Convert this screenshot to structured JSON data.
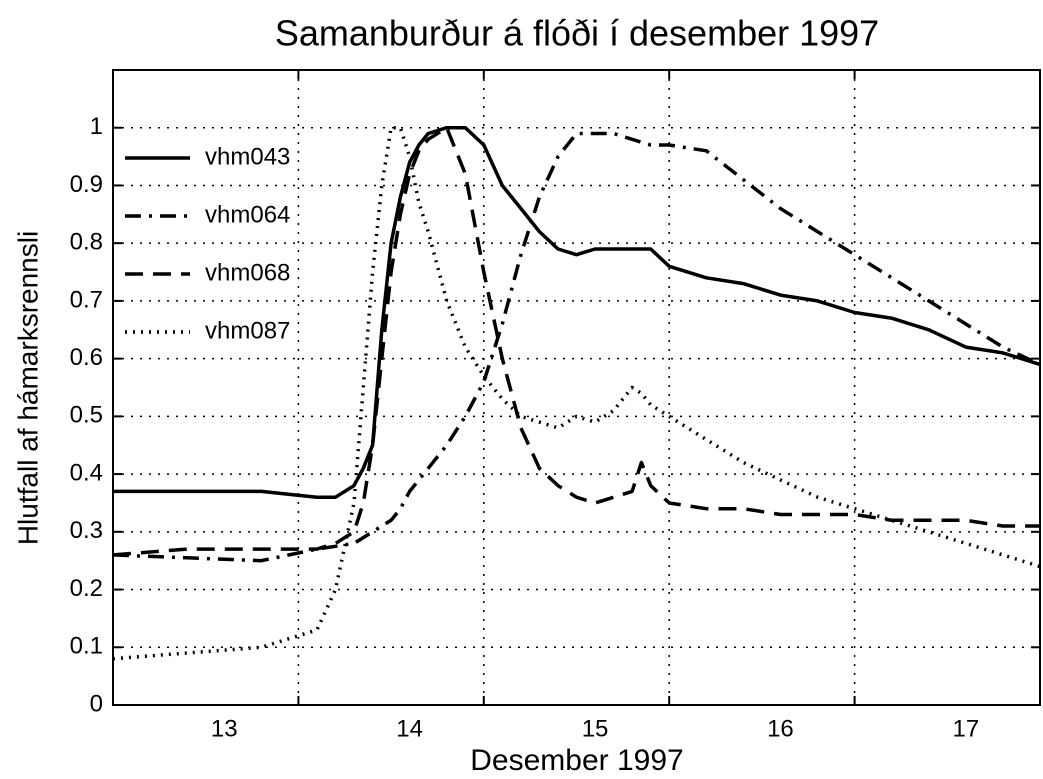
{
  "chart_data": {
    "type": "line",
    "title": "Samanburður á flóði í desember 1997",
    "x_label": "Desember 1997",
    "y_label": "Hlutfall af hámarksrennsli",
    "xlim": [
      12.4,
      17.4
    ],
    "xticks": [
      13,
      14,
      15,
      16,
      17
    ],
    "x_grid": [
      13.4,
      14.4,
      15.4,
      16.4
    ],
    "ylim": [
      0,
      1.1
    ],
    "yticks": [
      0,
      0.1,
      0.2,
      0.3,
      0.4,
      0.5,
      0.6,
      0.7,
      0.8,
      0.9,
      1
    ],
    "grid": true,
    "legend": "upper-left",
    "x": [
      12.4,
      12.8,
      13.2,
      13.5,
      13.6,
      13.7,
      13.75,
      13.8,
      13.85,
      13.9,
      13.95,
      14.0,
      14.05,
      14.1,
      14.2,
      14.3,
      14.4,
      14.5,
      14.6,
      14.7,
      14.8,
      14.9,
      15.0,
      15.1,
      15.2,
      15.25,
      15.3,
      15.4,
      15.6,
      15.8,
      16.0,
      16.2,
      16.4,
      16.6,
      16.8,
      17.0,
      17.2,
      17.4
    ],
    "series": [
      {
        "name": "vhm043",
        "color": "#000000",
        "dash": "solid",
        "values": [
          0.37,
          0.37,
          0.37,
          0.36,
          0.36,
          0.38,
          0.41,
          0.45,
          0.65,
          0.8,
          0.88,
          0.94,
          0.97,
          0.99,
          1.0,
          1.0,
          0.97,
          0.9,
          0.86,
          0.82,
          0.79,
          0.78,
          0.79,
          0.79,
          0.79,
          0.79,
          0.79,
          0.76,
          0.74,
          0.73,
          0.71,
          0.7,
          0.68,
          0.67,
          0.65,
          0.62,
          0.61,
          0.59
        ]
      },
      {
        "name": "vhm064",
        "color": "#000000",
        "dash": "dashdot",
        "values": [
          0.26,
          0.255,
          0.25,
          0.27,
          0.275,
          0.28,
          0.29,
          0.3,
          0.31,
          0.32,
          0.34,
          0.37,
          0.39,
          0.41,
          0.45,
          0.5,
          0.56,
          0.66,
          0.78,
          0.88,
          0.95,
          0.99,
          0.99,
          0.99,
          0.98,
          0.975,
          0.97,
          0.97,
          0.96,
          0.91,
          0.86,
          0.82,
          0.78,
          0.74,
          0.7,
          0.66,
          0.62,
          0.59
        ]
      },
      {
        "name": "vhm068",
        "color": "#000000",
        "dash": "dashed",
        "values": [
          0.26,
          0.27,
          0.27,
          0.27,
          0.28,
          0.3,
          0.35,
          0.45,
          0.6,
          0.75,
          0.85,
          0.92,
          0.96,
          0.98,
          1.0,
          0.92,
          0.75,
          0.6,
          0.48,
          0.41,
          0.38,
          0.36,
          0.35,
          0.36,
          0.37,
          0.42,
          0.38,
          0.35,
          0.34,
          0.34,
          0.33,
          0.33,
          0.33,
          0.32,
          0.32,
          0.32,
          0.31,
          0.31
        ]
      },
      {
        "name": "vhm087",
        "color": "#000000",
        "dash": "dotted",
        "values": [
          0.08,
          0.09,
          0.1,
          0.13,
          0.2,
          0.35,
          0.55,
          0.75,
          0.9,
          1.0,
          1.0,
          0.95,
          0.87,
          0.82,
          0.7,
          0.62,
          0.57,
          0.53,
          0.5,
          0.49,
          0.48,
          0.5,
          0.49,
          0.51,
          0.55,
          0.54,
          0.52,
          0.5,
          0.46,
          0.42,
          0.39,
          0.36,
          0.34,
          0.32,
          0.3,
          0.28,
          0.26,
          0.24
        ]
      }
    ]
  }
}
